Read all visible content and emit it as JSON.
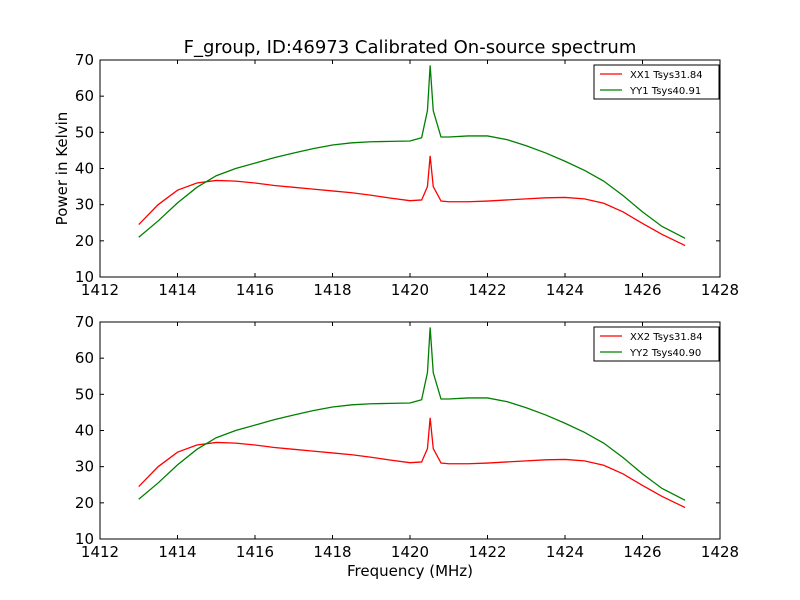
{
  "title": "F_group, ID:46973 Calibrated On-source spectrum",
  "chart_data": [
    {
      "type": "line",
      "ylabel": "Power in Kelvin",
      "xlabel": "",
      "xlim": [
        1412,
        1428
      ],
      "ylim": [
        10,
        70
      ],
      "x_ticks": [
        "1412",
        "1414",
        "1416",
        "1418",
        "1420",
        "1422",
        "1424",
        "1426",
        "1428"
      ],
      "y_ticks": [
        "10",
        "20",
        "30",
        "40",
        "50",
        "60",
        "70"
      ],
      "legend_position": "top-right",
      "series": [
        {
          "name": "XX1 Tsys31.84",
          "color": "#ff0000",
          "x": [
            1413.0,
            1413.5,
            1414.0,
            1414.5,
            1415.0,
            1415.5,
            1416.0,
            1416.5,
            1417.0,
            1417.5,
            1418.0,
            1418.5,
            1419.0,
            1419.5,
            1420.0,
            1420.3,
            1420.45,
            1420.52,
            1420.6,
            1420.8,
            1421.0,
            1421.5,
            1422.0,
            1422.5,
            1423.0,
            1423.5,
            1424.0,
            1424.5,
            1425.0,
            1425.5,
            1426.0,
            1426.5,
            1427.1
          ],
          "y": [
            24.5,
            30.0,
            34.0,
            36.0,
            36.7,
            36.5,
            36.0,
            35.3,
            34.8,
            34.3,
            33.8,
            33.3,
            32.6,
            31.8,
            31.1,
            31.3,
            35.0,
            43.5,
            35.0,
            31.0,
            30.8,
            30.8,
            31.0,
            31.3,
            31.6,
            31.9,
            32.0,
            31.6,
            30.4,
            28.0,
            24.8,
            21.8,
            18.7
          ]
        },
        {
          "name": "YY1 Tsys40.91",
          "color": "#008000",
          "x": [
            1413.0,
            1413.5,
            1414.0,
            1414.5,
            1415.0,
            1415.5,
            1416.0,
            1416.5,
            1417.0,
            1417.5,
            1418.0,
            1418.5,
            1419.0,
            1419.5,
            1420.0,
            1420.3,
            1420.45,
            1420.52,
            1420.6,
            1420.8,
            1421.0,
            1421.5,
            1422.0,
            1422.5,
            1423.0,
            1423.5,
            1424.0,
            1424.5,
            1425.0,
            1425.5,
            1426.0,
            1426.5,
            1427.1
          ],
          "y": [
            21.0,
            25.5,
            30.5,
            34.8,
            38.0,
            40.0,
            41.5,
            43.0,
            44.3,
            45.5,
            46.5,
            47.1,
            47.4,
            47.5,
            47.6,
            48.5,
            56.0,
            68.5,
            56.0,
            48.7,
            48.7,
            49.0,
            49.0,
            48.0,
            46.3,
            44.3,
            42.0,
            39.5,
            36.5,
            32.5,
            28.0,
            24.0,
            20.7
          ]
        }
      ]
    },
    {
      "type": "line",
      "ylabel": "",
      "xlabel": "Frequency (MHz)",
      "xlim": [
        1412,
        1428
      ],
      "ylim": [
        10,
        70
      ],
      "x_ticks": [
        "1412",
        "1414",
        "1416",
        "1418",
        "1420",
        "1422",
        "1424",
        "1426",
        "1428"
      ],
      "y_ticks": [
        "10",
        "20",
        "30",
        "40",
        "50",
        "60",
        "70"
      ],
      "legend_position": "top-right",
      "series": [
        {
          "name": "XX2 Tsys31.84",
          "color": "#ff0000",
          "x": [
            1413.0,
            1413.5,
            1414.0,
            1414.5,
            1415.0,
            1415.5,
            1416.0,
            1416.5,
            1417.0,
            1417.5,
            1418.0,
            1418.5,
            1419.0,
            1419.5,
            1420.0,
            1420.3,
            1420.45,
            1420.52,
            1420.6,
            1420.8,
            1421.0,
            1421.5,
            1422.0,
            1422.5,
            1423.0,
            1423.5,
            1424.0,
            1424.5,
            1425.0,
            1425.5,
            1426.0,
            1426.5,
            1427.1
          ],
          "y": [
            24.5,
            30.0,
            34.0,
            36.0,
            36.7,
            36.5,
            36.0,
            35.3,
            34.8,
            34.3,
            33.8,
            33.3,
            32.6,
            31.8,
            31.1,
            31.3,
            35.0,
            43.5,
            35.0,
            31.0,
            30.8,
            30.8,
            31.0,
            31.3,
            31.6,
            31.9,
            32.0,
            31.6,
            30.4,
            28.0,
            24.8,
            21.8,
            18.7
          ]
        },
        {
          "name": "YY2 Tsys40.90",
          "color": "#008000",
          "x": [
            1413.0,
            1413.5,
            1414.0,
            1414.5,
            1415.0,
            1415.5,
            1416.0,
            1416.5,
            1417.0,
            1417.5,
            1418.0,
            1418.5,
            1419.0,
            1419.5,
            1420.0,
            1420.3,
            1420.45,
            1420.52,
            1420.6,
            1420.8,
            1421.0,
            1421.5,
            1422.0,
            1422.5,
            1423.0,
            1423.5,
            1424.0,
            1424.5,
            1425.0,
            1425.5,
            1426.0,
            1426.5,
            1427.1
          ],
          "y": [
            21.0,
            25.5,
            30.5,
            34.8,
            38.0,
            40.0,
            41.5,
            43.0,
            44.3,
            45.5,
            46.5,
            47.1,
            47.4,
            47.5,
            47.6,
            48.5,
            56.0,
            68.5,
            56.0,
            48.7,
            48.7,
            49.0,
            49.0,
            48.0,
            46.3,
            44.3,
            42.0,
            39.5,
            36.5,
            32.5,
            28.0,
            24.0,
            20.7
          ]
        }
      ]
    }
  ]
}
